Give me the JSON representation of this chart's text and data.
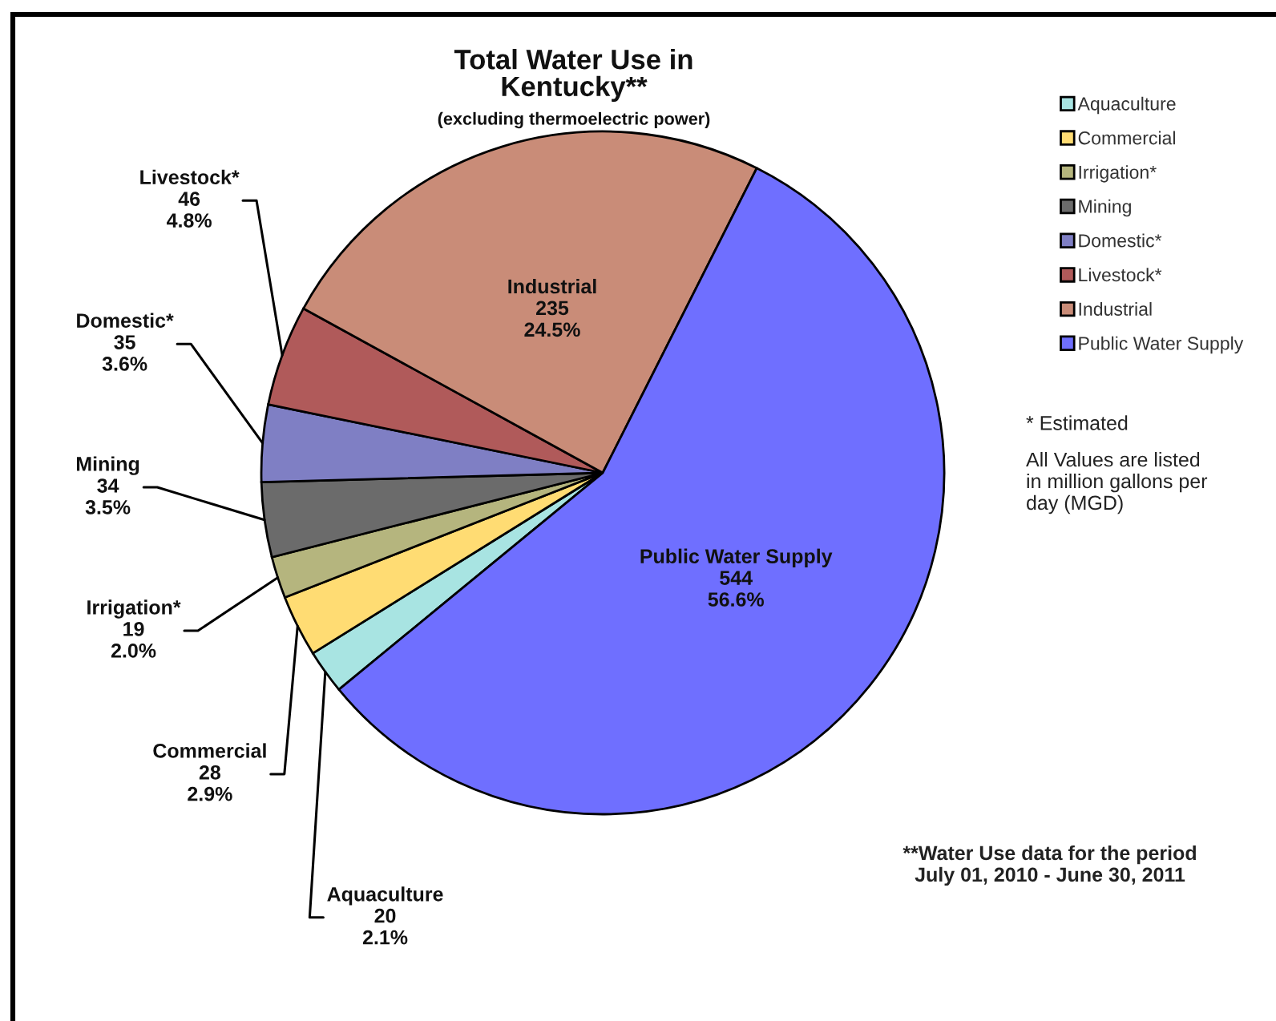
{
  "chart_data": {
    "type": "pie",
    "title": "Total Water Use in\nKentucky**",
    "subtitle": "(excluding thermoelectric power)",
    "categories": [
      "Aquaculture",
      "Commercial",
      "Irrigation*",
      "Mining",
      "Domestic*",
      "Livestock*",
      "Industrial",
      "Public Water Supply"
    ],
    "values": [
      20,
      28,
      19,
      34,
      35,
      46,
      235,
      544
    ],
    "colors": [
      "#a8e4e2",
      "#ffdc73",
      "#b5b57e",
      "#6b6b6b",
      "#7f7fc4",
      "#b05a5a",
      "#c98c78",
      "#6f6fff"
    ],
    "value_labels": [
      "20\n2.1%",
      "28\n2.9%",
      "19\n2.0%",
      "34\n3.5%",
      "35\n3.6%",
      "46\n4.8%",
      "235\n24.5%",
      "544\n56.6%"
    ],
    "legend": "top right",
    "annotations": [
      "* Estimated",
      "All Values are listed\nin million gallons per\nday (MGD)",
      "**Water Use data for the period\nJuly 01, 2010 - June 30, 2011"
    ]
  }
}
